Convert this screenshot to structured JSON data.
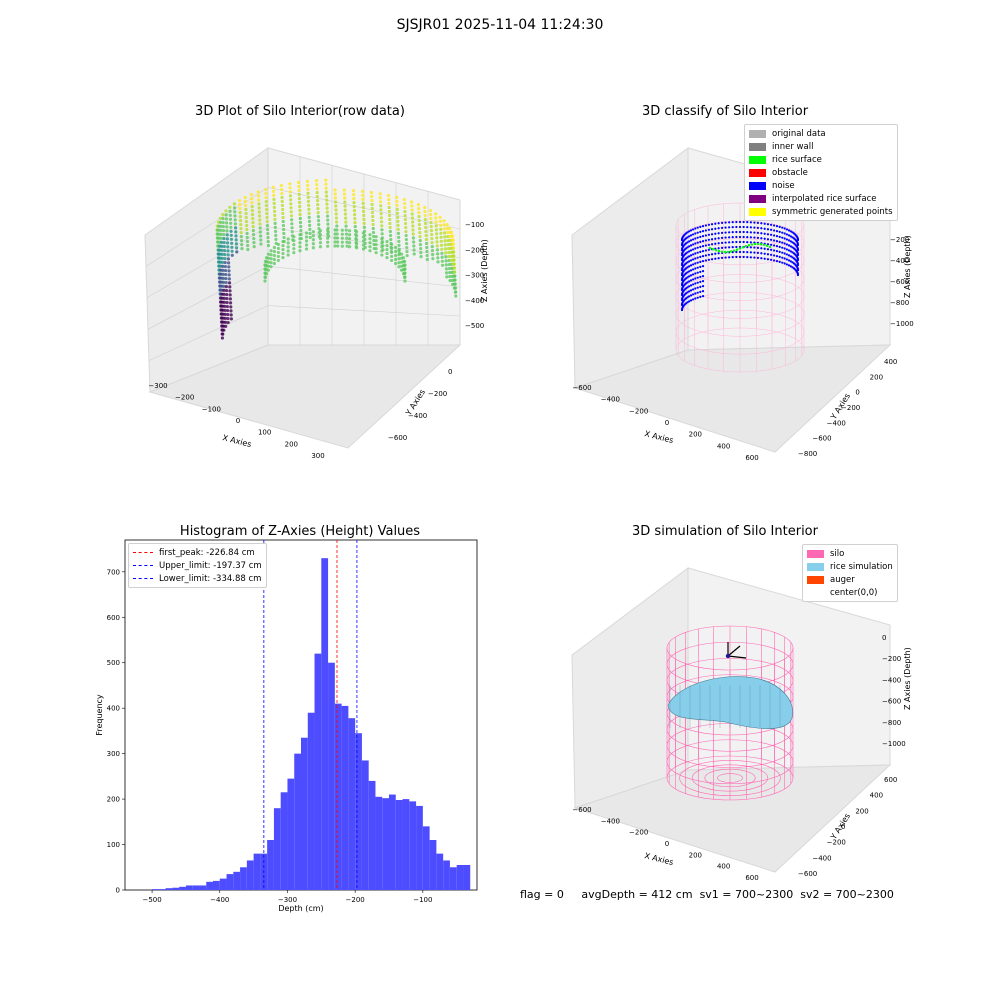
{
  "suptitle": "SJSJR01 2025-11-04 11:24:30",
  "plot1": {
    "title": "3D Plot of Silo Interior(row data)",
    "xlabel": "X Axies",
    "ylabel": "Y Axies",
    "zlabel": "Z Axies (Depth)",
    "xticks": [
      "−300",
      "−200",
      "−100",
      "0",
      "100",
      "200",
      "300"
    ],
    "yticks": [
      "−600",
      "−400",
      "−200",
      "0"
    ],
    "zticks": [
      "−100",
      "−200",
      "−300",
      "−400",
      "−500"
    ]
  },
  "plot2": {
    "title": "3D classify of Silo Interior",
    "xlabel": "X Axies",
    "ylabel": "Y Axies",
    "zlabel": "Z Axies (Depth)",
    "xticks": [
      "−600",
      "−400",
      "−200",
      "0",
      "200",
      "400",
      "600"
    ],
    "yticks": [
      "−800",
      "−600",
      "−400",
      "−200",
      "0",
      "200",
      "400"
    ],
    "zticks": [
      "−200",
      "−400",
      "−600",
      "−800",
      "−1000"
    ],
    "legend": [
      {
        "label": "original data",
        "color": "#b0b0b0"
      },
      {
        "label": "inner wall",
        "color": "#808080"
      },
      {
        "label": "rice surface",
        "color": "#00ff00"
      },
      {
        "label": "obstacle",
        "color": "#ff0000"
      },
      {
        "label": "noise",
        "color": "#0000ff"
      },
      {
        "label": "interpolated rice surface",
        "color": "#800080"
      },
      {
        "label": "symmetric generated points",
        "color": "#ffff00"
      }
    ]
  },
  "plot4": {
    "title": "3D simulation of Silo Interior",
    "xlabel": "X Axies",
    "ylabel": "Y Axies",
    "zlabel": "Z Axies (Depth)",
    "xticks": [
      "−600",
      "−400",
      "−200",
      "0",
      "200",
      "400",
      "600"
    ],
    "yticks": [
      "−600",
      "−400",
      "−200",
      "0",
      "200",
      "400",
      "600"
    ],
    "zticks": [
      "0",
      "−200",
      "−400",
      "−600",
      "−800",
      "−1000"
    ],
    "legend": [
      {
        "label": "silo",
        "color": "#ff69b4"
      },
      {
        "label": "rice simulation",
        "color": "#87ceeb"
      },
      {
        "label": "auger",
        "color": "#ff4500"
      },
      {
        "label": "center(0,0)",
        "color": "#ffffff"
      }
    ]
  },
  "footer": {
    "flag": "flag = 0",
    "avg": "avgDepth = 412 cm",
    "sv1": "sv1 = 700~2300",
    "sv2": "sv2 = 700~2300"
  },
  "chart_data": [
    {
      "type": "bar",
      "title": "Histogram of Z-Axies (Height) Values",
      "xlabel": "Depth (cm)",
      "ylabel": "Frequency",
      "xlim": [
        -540,
        -20
      ],
      "ylim": [
        0,
        770
      ],
      "bin_width": 10,
      "bin_starts": [
        -500,
        -490,
        -480,
        -470,
        -460,
        -450,
        -440,
        -430,
        -420,
        -410,
        -400,
        -390,
        -380,
        -370,
        -360,
        -350,
        -340,
        -330,
        -320,
        -310,
        -300,
        -290,
        -280,
        -270,
        -260,
        -250,
        -240,
        -230,
        -220,
        -210,
        -200,
        -190,
        -180,
        -170,
        -160,
        -150,
        -140,
        -130,
        -120,
        -110,
        -100,
        -90,
        -80,
        -70,
        -60,
        -50,
        -40
      ],
      "values": [
        2,
        2,
        4,
        5,
        7,
        10,
        10,
        10,
        18,
        20,
        25,
        35,
        40,
        50,
        65,
        80,
        80,
        110,
        180,
        215,
        245,
        300,
        335,
        390,
        520,
        730,
        500,
        410,
        405,
        378,
        345,
        285,
        240,
        205,
        202,
        210,
        198,
        200,
        195,
        185,
        140,
        110,
        80,
        65,
        50,
        55,
        55
      ],
      "xticks": [
        -500,
        -400,
        -300,
        -200,
        -100
      ],
      "yticks": [
        0,
        100,
        200,
        300,
        400,
        500,
        600,
        700
      ],
      "lines": [
        {
          "label": "first_peak: -226.84 cm",
          "x": -226.84,
          "color": "#ff0000"
        },
        {
          "label": "Upper_limit: -197.37 cm",
          "x": -197.37,
          "color": "#0000ff"
        },
        {
          "label": "Lower_limit: -334.88 cm",
          "x": -334.88,
          "color": "#0000ff"
        }
      ],
      "bar_color": "#4d4dff"
    }
  ]
}
